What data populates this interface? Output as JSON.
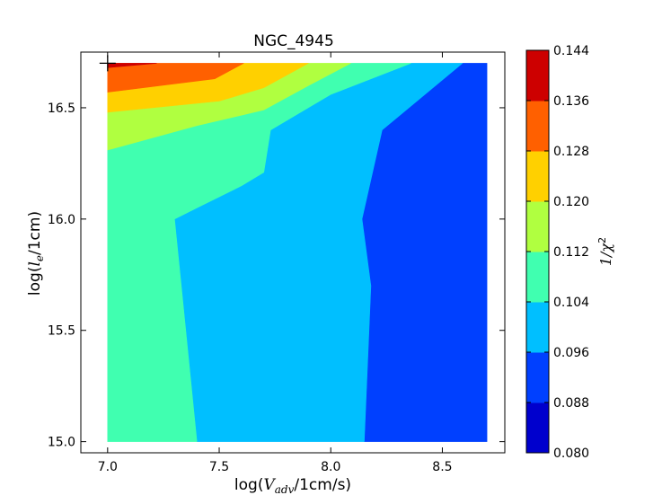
{
  "chart_data": {
    "type": "heatmap",
    "plot_kind": "filled-contour",
    "title": "NGC_4945",
    "xlabel": {
      "prefix": "log(",
      "sym": "V",
      "sub": "adv",
      "suffix": "/1cm/s)"
    },
    "ylabel": {
      "prefix": "log(",
      "sym": "l",
      "sub": "e",
      "suffix": "/1cm)"
    },
    "xlim": [
      6.88,
      8.78
    ],
    "ylim": [
      14.95,
      16.75
    ],
    "xticks": [
      "7.0",
      "7.5",
      "8.0",
      "8.5"
    ],
    "yticks": [
      "15.0",
      "15.5",
      "16.0",
      "16.5"
    ],
    "grid": false,
    "colorbar": {
      "label": {
        "lhs": "1/",
        "sym": "χ",
        "sup": "2"
      },
      "levels": [
        "0.080",
        "0.088",
        "0.096",
        "0.104",
        "0.112",
        "0.120",
        "0.128",
        "0.136",
        "0.144"
      ],
      "colors": [
        "#0000cd",
        "#0040ff",
        "#00bfff",
        "#40ffb0",
        "#b0ff40",
        "#ffd000",
        "#ff6000",
        "#cd0000"
      ]
    },
    "regions": [
      {
        "range": "0.088-0.096",
        "color": "#0040ff",
        "polygon": [
          [
            8.15,
            15.0
          ],
          [
            8.7,
            15.0
          ],
          [
            8.7,
            16.7
          ],
          [
            8.59,
            16.7
          ],
          [
            8.23,
            16.4
          ],
          [
            8.14,
            16.0
          ],
          [
            8.18,
            15.7
          ]
        ]
      },
      {
        "range": "0.096-0.104",
        "color": "#00bfff",
        "polygon": [
          [
            7.4,
            15.0
          ],
          [
            8.15,
            15.0
          ],
          [
            8.18,
            15.7
          ],
          [
            8.14,
            16.0
          ],
          [
            8.23,
            16.4
          ],
          [
            8.59,
            16.7
          ],
          [
            8.36,
            16.7
          ],
          [
            8.0,
            16.56
          ],
          [
            7.73,
            16.4
          ],
          [
            7.7,
            16.21
          ],
          [
            7.6,
            16.15
          ],
          [
            7.5,
            16.1
          ],
          [
            7.4,
            16.05
          ],
          [
            7.3,
            16.0
          ],
          [
            7.33,
            15.7
          ]
        ]
      },
      {
        "range": "0.104-0.112",
        "color": "#40ffb0",
        "polygon": [
          [
            7.0,
            15.0
          ],
          [
            7.4,
            15.0
          ],
          [
            7.33,
            15.7
          ],
          [
            7.3,
            16.0
          ],
          [
            7.4,
            16.05
          ],
          [
            7.5,
            16.1
          ],
          [
            7.6,
            16.15
          ],
          [
            7.7,
            16.21
          ],
          [
            7.73,
            16.4
          ],
          [
            8.0,
            16.56
          ],
          [
            8.36,
            16.7
          ],
          [
            8.09,
            16.7
          ],
          [
            7.9,
            16.6
          ],
          [
            7.7,
            16.49
          ],
          [
            7.4,
            16.42
          ],
          [
            7.0,
            16.31
          ]
        ]
      },
      {
        "range": "0.112-0.120",
        "color": "#b0ff40",
        "polygon": [
          [
            7.0,
            16.31
          ],
          [
            7.4,
            16.42
          ],
          [
            7.7,
            16.49
          ],
          [
            7.9,
            16.6
          ],
          [
            8.09,
            16.7
          ],
          [
            7.9,
            16.7
          ],
          [
            7.7,
            16.59
          ],
          [
            7.5,
            16.53
          ],
          [
            7.0,
            16.48
          ]
        ]
      },
      {
        "range": "0.120-0.128",
        "color": "#ffd000",
        "polygon": [
          [
            7.0,
            16.48
          ],
          [
            7.5,
            16.53
          ],
          [
            7.7,
            16.59
          ],
          [
            7.9,
            16.7
          ],
          [
            7.61,
            16.7
          ],
          [
            7.48,
            16.63
          ],
          [
            7.0,
            16.57
          ]
        ]
      },
      {
        "range": "0.128-0.136",
        "color": "#ff6000",
        "polygon": [
          [
            7.0,
            16.57
          ],
          [
            7.48,
            16.63
          ],
          [
            7.61,
            16.7
          ],
          [
            7.0,
            16.7
          ]
        ]
      },
      {
        "range": "0.136-0.144",
        "color": "#cd0000",
        "polygon": [
          [
            7.0,
            16.68
          ],
          [
            7.22,
            16.7
          ],
          [
            7.0,
            16.7
          ]
        ]
      }
    ],
    "marker": {
      "shape": "plus",
      "x": 7.0,
      "y": 16.7
    }
  }
}
